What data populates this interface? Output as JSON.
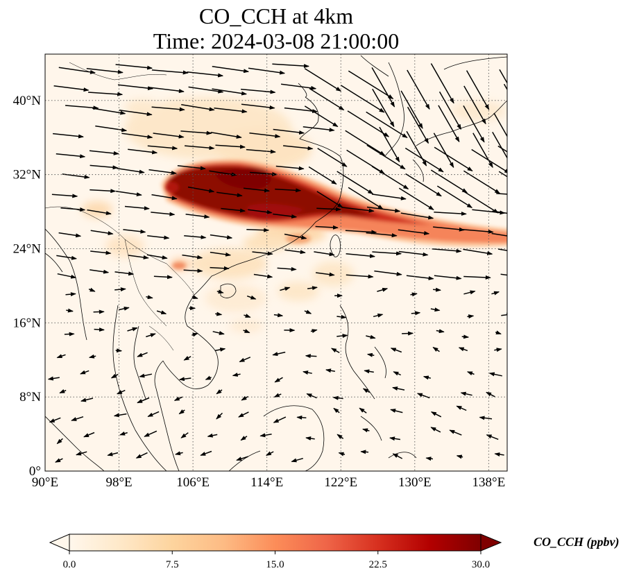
{
  "title_line1": "CO_CCH at 4km",
  "title_line2": "Time: 2024-03-08 21:00:00",
  "chart_data": {
    "type": "heatmap",
    "title": "CO_CCH at 4km\nTime: 2024-03-08 21:00:00",
    "map_extent": {
      "lon": [
        90,
        140
      ],
      "lat": [
        0,
        45
      ]
    },
    "lon_ticks": [
      "90°E",
      "98°E",
      "106°E",
      "114°E",
      "122°E",
      "130°E",
      "138°E"
    ],
    "lat_ticks": [
      "0°",
      "8°N",
      "16°N",
      "24°N",
      "32°N",
      "40°N"
    ],
    "lon_tick_values": [
      90,
      98,
      106,
      114,
      122,
      130,
      138
    ],
    "lat_tick_values": [
      0,
      8,
      16,
      24,
      32,
      40
    ],
    "gridlines": true,
    "colormap": "OrRd",
    "colorbar": {
      "label": "CO_CCH (ppbv)",
      "range": [
        0,
        30
      ],
      "ticks": [
        "0.0",
        "7.5",
        "15.0",
        "22.5",
        "30.0"
      ],
      "tick_values": [
        0,
        7.5,
        15,
        22.5,
        30
      ],
      "extend": "both",
      "colors": [
        "#fff7ec",
        "#fee8c8",
        "#fdd49e",
        "#fdbb84",
        "#fc8d59",
        "#ef6548",
        "#d7301f",
        "#b30000",
        "#7f0000"
      ]
    },
    "co_plume_features": [
      {
        "lon": 108.5,
        "lat": 30.0,
        "value": 30
      },
      {
        "lon": 113.0,
        "lat": 29.5,
        "value": 30
      },
      {
        "lon": 116.5,
        "lat": 28.0,
        "value": 28
      },
      {
        "lon": 121.0,
        "lat": 27.0,
        "value": 24
      },
      {
        "lon": 126.0,
        "lat": 26.2,
        "value": 17
      },
      {
        "lon": 131.0,
        "lat": 25.2,
        "value": 12
      },
      {
        "lon": 136.0,
        "lat": 24.6,
        "value": 8
      },
      {
        "lon": 114.0,
        "lat": 33.5,
        "value": 6
      },
      {
        "lon": 104.0,
        "lat": 21.5,
        "value": 9
      },
      {
        "lon": 117.0,
        "lat": 20.0,
        "value": 4
      }
    ],
    "wind_vectors": "layered quiver field; westerlies north of ~20°N, easterly / northeasterly flow over South China Sea"
  }
}
